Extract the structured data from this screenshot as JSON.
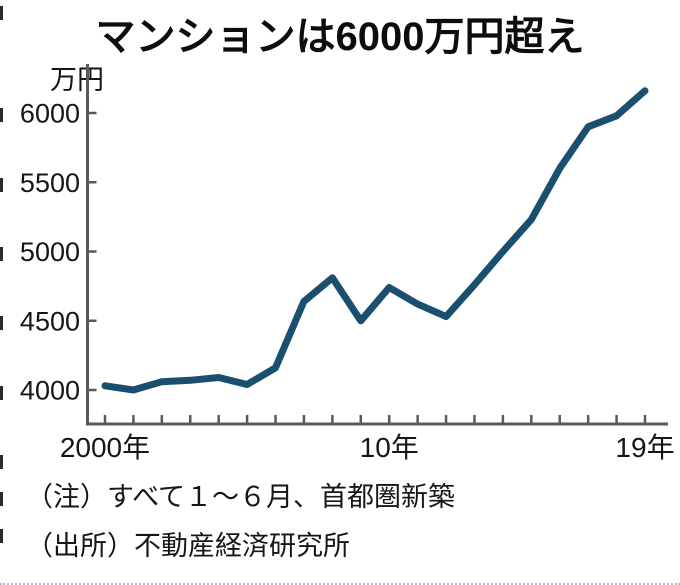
{
  "chart_data": {
    "type": "line",
    "title": "マンションは6000万円超え",
    "unit_label": "万円",
    "x": [
      2000,
      2001,
      2002,
      2003,
      2004,
      2005,
      2006,
      2007,
      2008,
      2009,
      2010,
      2011,
      2012,
      2013,
      2014,
      2015,
      2016,
      2017,
      2018,
      2019
    ],
    "values": [
      4030,
      4000,
      4060,
      4070,
      4090,
      4040,
      4160,
      4640,
      4810,
      4500,
      4740,
      4620,
      4530,
      4760,
      5000,
      5230,
      5600,
      5900,
      5980,
      6160
    ],
    "yticks": [
      4000,
      4500,
      5000,
      5500,
      6000
    ],
    "ylim": [
      3900,
      6350
    ],
    "xtick_labels": [
      {
        "year": 2000,
        "label": "2000年"
      },
      {
        "year": 2010,
        "label": "10年"
      },
      {
        "year": 2019,
        "label": "19年"
      }
    ],
    "line_color": "#1b4f70",
    "axis_color": "#595959",
    "grid": false,
    "legend": "none"
  },
  "footnotes": {
    "note": "（注）すべて１～６月、首都圏新築",
    "source": "（出所）不動産経済研究所"
  }
}
